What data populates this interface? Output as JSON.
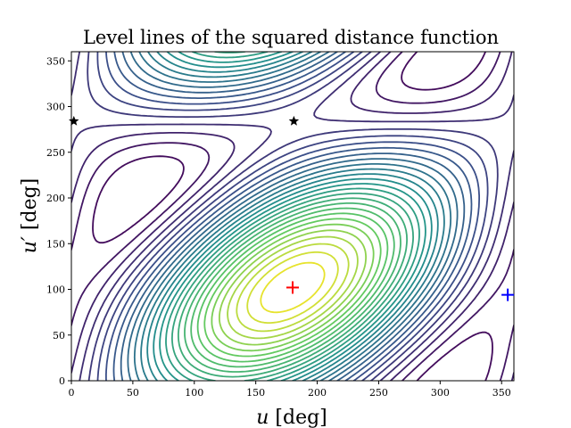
{
  "chart_data": {
    "type": "contour",
    "title": "Level lines of the squared distance function",
    "xlabel_var": "u",
    "xlabel_unit": " [deg]",
    "ylabel_var": "u′",
    "ylabel_unit": " [deg]",
    "xlim": [
      0,
      360
    ],
    "ylim": [
      0,
      360
    ],
    "xticks": [
      0,
      50,
      100,
      150,
      200,
      250,
      300,
      350
    ],
    "yticks": [
      0,
      50,
      100,
      150,
      200,
      250,
      300,
      350
    ],
    "colormap": [
      "#440154",
      "#3b528b",
      "#21918c",
      "#5ec962",
      "#fde725"
    ],
    "contour_levels": 28,
    "markers": [
      {
        "name": "minimum",
        "symbol": "plus",
        "color": "#ff0000",
        "x": 180,
        "y": 102
      },
      {
        "name": "secondary",
        "symbol": "plus",
        "color": "#0000ff",
        "x": 355,
        "y": 94
      },
      {
        "name": "saddle-1",
        "symbol": "star",
        "color": "#000000",
        "x": 2,
        "y": 284
      },
      {
        "name": "saddle-2",
        "symbol": "star",
        "color": "#000000",
        "x": 181,
        "y": 284
      }
    ]
  }
}
